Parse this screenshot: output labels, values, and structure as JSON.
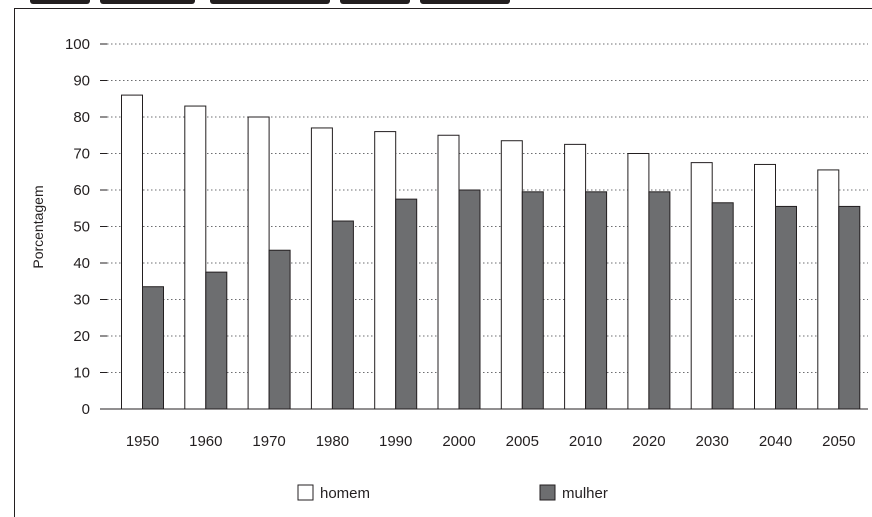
{
  "chart_data": {
    "type": "bar",
    "title": "",
    "xlabel": "",
    "ylabel": "Porcentagem",
    "ylim": [
      0,
      100
    ],
    "yticks": [
      0,
      10,
      20,
      30,
      40,
      50,
      60,
      70,
      80,
      90,
      100
    ],
    "grid": true,
    "legend_position": "bottom",
    "categories": [
      "1950",
      "1960",
      "1970",
      "1980",
      "1990",
      "2000",
      "2005",
      "2010",
      "2020",
      "2030",
      "2040",
      "2050"
    ],
    "series": [
      {
        "name": "homem",
        "color": "#ffffff",
        "values": [
          86,
          83,
          80,
          77,
          76,
          75,
          73.5,
          72.5,
          70,
          67.5,
          67,
          65.5
        ]
      },
      {
        "name": "mulher",
        "color": "#6d6e70",
        "values": [
          33.5,
          37.5,
          43.5,
          51.5,
          57.5,
          60,
          59.5,
          59.5,
          59.5,
          56.5,
          55.5,
          55.5
        ]
      }
    ]
  }
}
